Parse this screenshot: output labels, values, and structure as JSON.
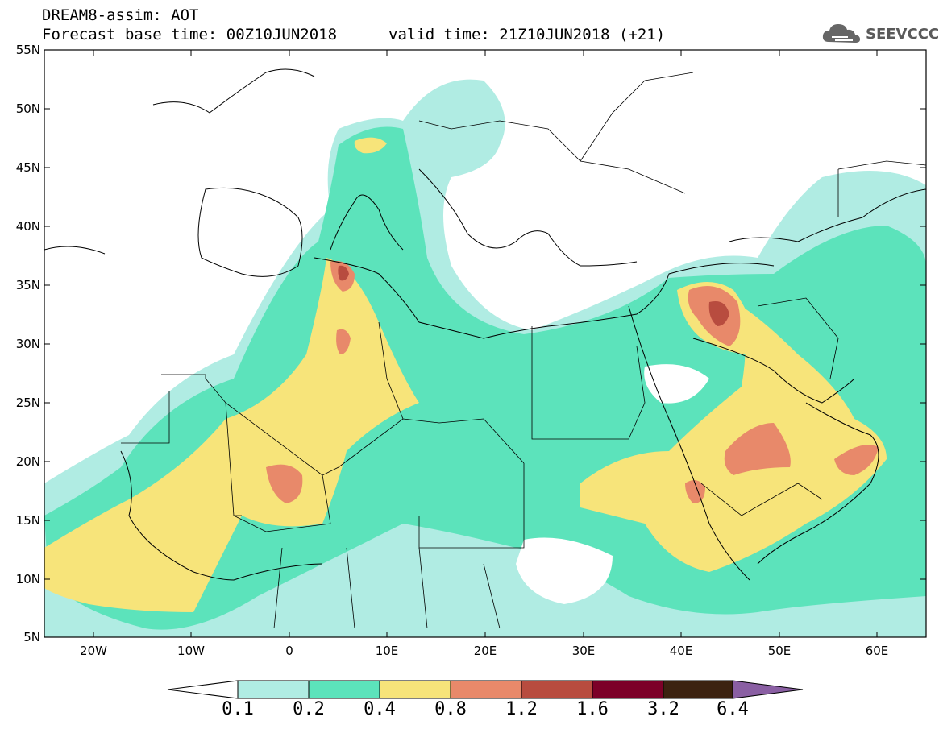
{
  "header": {
    "title": "DREAM8-assim: AOT",
    "base_time": "Forecast base time: 00Z10JUN2018",
    "valid_time": "valid time: 21Z10JUN2018 (+21)"
  },
  "logo": {
    "text": "SEEVCCC",
    "icon": "cloud-logo-icon"
  },
  "map": {
    "lat_labels": [
      "55N",
      "50N",
      "45N",
      "40N",
      "35N",
      "30N",
      "25N",
      "20N",
      "15N",
      "10N",
      "5N"
    ],
    "lon_labels": [
      "20W",
      "10W",
      "0",
      "10E",
      "20E",
      "30E",
      "40E",
      "50E",
      "60E"
    ],
    "extent": {
      "lon": [
        -25,
        65
      ],
      "lat": [
        5,
        55
      ]
    }
  },
  "colorbar": {
    "levels": [
      "0.1",
      "0.2",
      "0.4",
      "0.8",
      "1.2",
      "1.6",
      "3.2",
      "6.4"
    ],
    "colors": [
      "#ffffff",
      "#b0ece3",
      "#5ce3bb",
      "#f7e47a",
      "#e8896a",
      "#b84c3f",
      "#7c0028",
      "#3c2210",
      "#8a5fa3"
    ]
  }
}
